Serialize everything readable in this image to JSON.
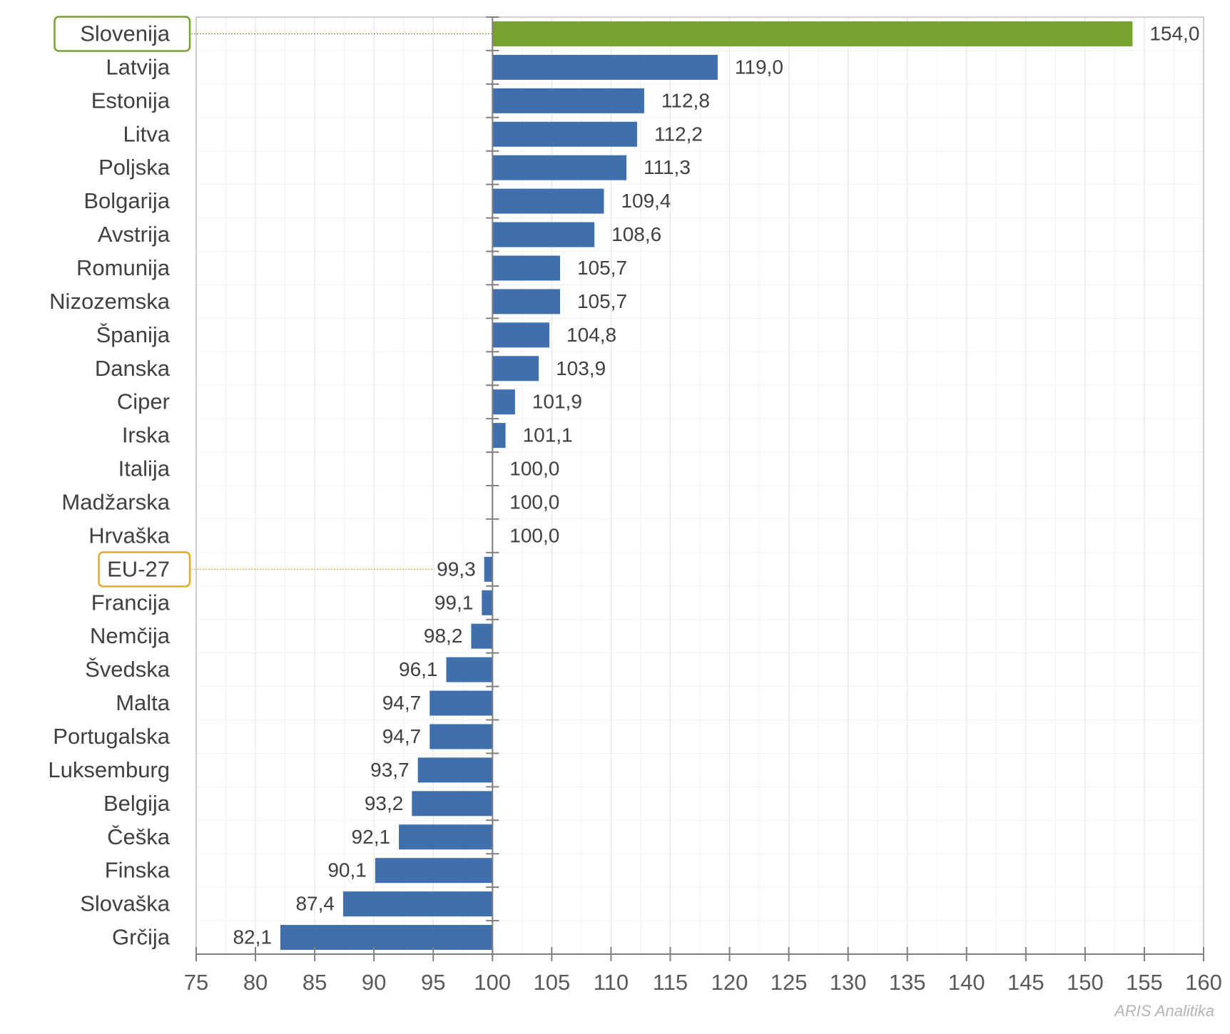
{
  "chart_data": {
    "type": "bar",
    "orientation": "horizontal",
    "categories": [
      "Slovenija",
      "Latvija",
      "Estonija",
      "Litva",
      "Poljska",
      "Bolgarija",
      "Avstrija",
      "Romunija",
      "Nizozemska",
      "Španija",
      "Danska",
      "Ciper",
      "Irska",
      "Italija",
      "Madžarska",
      "Hrvaška",
      "EU-27",
      "Francija",
      "Nemčija",
      "Švedska",
      "Malta",
      "Portugalska",
      "Luksemburg",
      "Belgija",
      "Češka",
      "Finska",
      "Slovaška",
      "Grčija"
    ],
    "values": [
      154.0,
      119.0,
      112.8,
      112.2,
      111.3,
      109.4,
      108.6,
      105.7,
      105.7,
      104.8,
      103.9,
      101.9,
      101.1,
      100.0,
      100.0,
      100.0,
      99.3,
      99.1,
      98.2,
      96.1,
      94.7,
      94.7,
      93.7,
      93.2,
      92.1,
      90.1,
      87.4,
      82.1
    ],
    "value_labels": [
      "154,0",
      "119,0",
      "112,8",
      "112,2",
      "111,3",
      "109,4",
      "108,6",
      "105,7",
      "105,7",
      "104,8",
      "103,9",
      "101,9",
      "101,1",
      "100,0",
      "100,0",
      "100,0",
      "99,3",
      "99,1",
      "98,2",
      "96,1",
      "94,7",
      "94,7",
      "93,7",
      "93,2",
      "92,1",
      "90,1",
      "87,4",
      "82,1"
    ],
    "baseline": 100,
    "xlim": [
      75,
      160
    ],
    "x_ticks": [
      75,
      80,
      85,
      90,
      95,
      100,
      105,
      110,
      115,
      120,
      125,
      130,
      135,
      140,
      145,
      150,
      155,
      160
    ],
    "grid": true,
    "highlight": [
      {
        "category": "Slovenija",
        "bar_color": "#76a22f",
        "box_color": "#76a22f"
      },
      {
        "category": "EU-27",
        "bar_color": "#3f6fad",
        "box_color": "#e8a825"
      }
    ],
    "colors": {
      "bar": "#3f6fad",
      "grid": "#e6e6e6",
      "axis": "#7f7f7f",
      "text": "#404040"
    }
  },
  "watermark": "ARIS Analitika"
}
